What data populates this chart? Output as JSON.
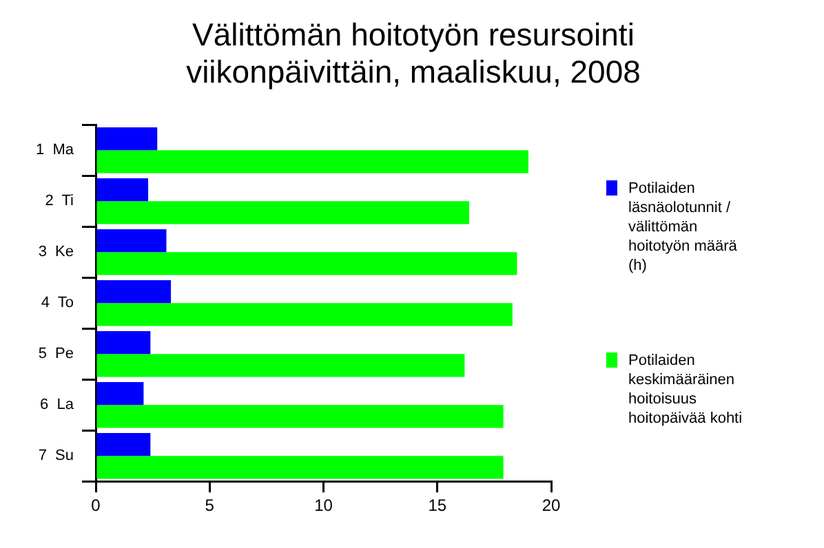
{
  "chart_data": {
    "type": "bar",
    "orientation": "horizontal",
    "title": "Välittömän hoitotyön resursointi viikonpäivittäin, maaliskuu, 2008",
    "categories": [
      "1  Ma",
      "2  Ti",
      "3  Ke",
      "4  To",
      "5  Pe",
      "6  La",
      "7  Su"
    ],
    "series": [
      {
        "name": "Potilaiden läsnäolotunnit / välittömän hoitotyön määrä (h)",
        "color": "#0000ff",
        "values": [
          2.7,
          2.3,
          3.1,
          3.3,
          2.4,
          2.1,
          2.4
        ]
      },
      {
        "name": "Potilaiden keskimääräinen hoitoisuus hoitopäivää kohti",
        "color": "#00ff00",
        "values": [
          19.0,
          16.4,
          18.5,
          18.3,
          16.2,
          17.9,
          17.9
        ]
      }
    ],
    "xlim": [
      0,
      20
    ],
    "xticks": [
      0,
      5,
      10,
      15,
      20
    ],
    "grid": false,
    "legend": "right"
  }
}
